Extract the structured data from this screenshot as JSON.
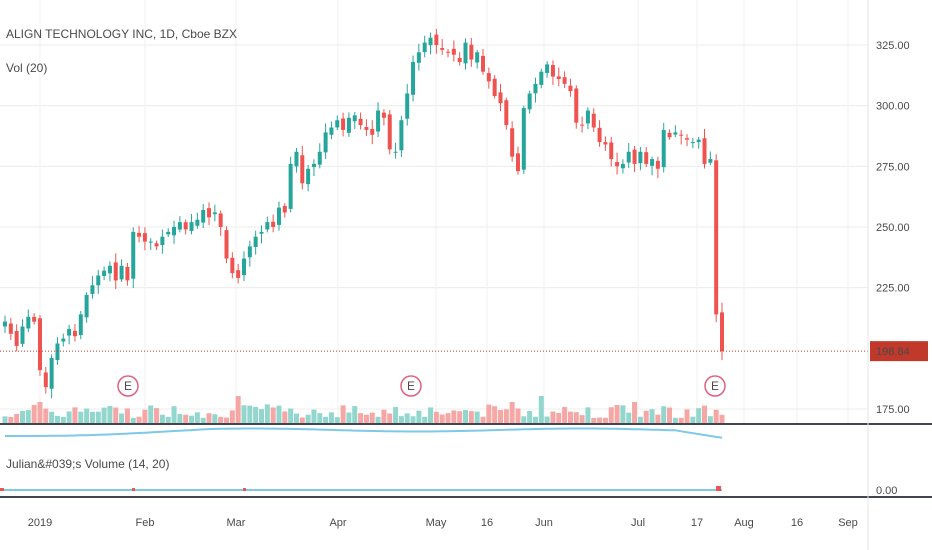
{
  "chart_data": {
    "type": "candlestick",
    "header": {
      "symbol": "ALIGN TECHNOLOGY INC, 1D, Cboe BZX",
      "vol_label": "Vol (20)"
    },
    "price_axis": {
      "ticks": [
        "325.00",
        "300.00",
        "275.00",
        "250.00",
        "225.00",
        "175.00"
      ],
      "tick_values": [
        325,
        300,
        275,
        250,
        225,
        175
      ],
      "range": [
        170,
        340
      ]
    },
    "last_price": {
      "label": "198.84",
      "value": 198.84
    },
    "x_axis": {
      "ticks": [
        "2019",
        "Feb",
        "Mar",
        "Apr",
        "May",
        "16",
        "Jun",
        "Jul",
        "17",
        "Aug",
        "16",
        "Sep"
      ]
    },
    "earnings_markers": [
      "E",
      "E",
      "E"
    ],
    "lower_panel": {
      "label": "Julian&#039;s Volume (14, 20)",
      "ticks": [
        "0.00"
      ]
    },
    "colors": {
      "up": "#26a69a",
      "down": "#ef5350",
      "vol_up": "#93d6cd",
      "vol_down": "#f4a7a4",
      "avg_line": "#7ec8e8",
      "last_price": "#c0392b"
    },
    "closes": [
      211,
      206,
      201,
      209,
      213,
      211,
      191,
      184,
      196,
      202,
      204,
      208,
      205,
      214,
      222,
      226,
      230,
      232,
      234,
      228,
      234,
      228,
      248,
      246,
      244,
      244,
      242,
      246,
      248,
      250,
      252,
      249,
      252,
      253,
      257,
      254,
      256,
      250,
      237,
      231,
      229,
      237,
      242,
      246,
      248,
      252,
      250,
      258,
      256,
      276,
      281,
      268,
      274,
      276,
      281,
      289,
      291,
      294,
      290,
      295,
      296,
      292,
      290,
      288,
      298,
      295,
      282,
      281,
      294,
      305,
      318,
      322,
      326,
      328,
      325,
      323,
      322,
      321,
      318,
      326,
      319,
      322,
      314,
      310,
      304,
      301,
      292,
      279,
      273,
      299,
      305,
      309,
      314,
      317,
      312,
      311,
      309,
      306,
      293,
      292,
      298,
      291,
      285,
      284,
      278,
      275,
      276,
      281,
      276,
      281,
      276,
      278,
      274,
      290,
      287,
      289,
      288,
      286,
      285,
      286,
      276,
      278,
      214,
      198.84
    ],
    "series_count_note": ""
  }
}
